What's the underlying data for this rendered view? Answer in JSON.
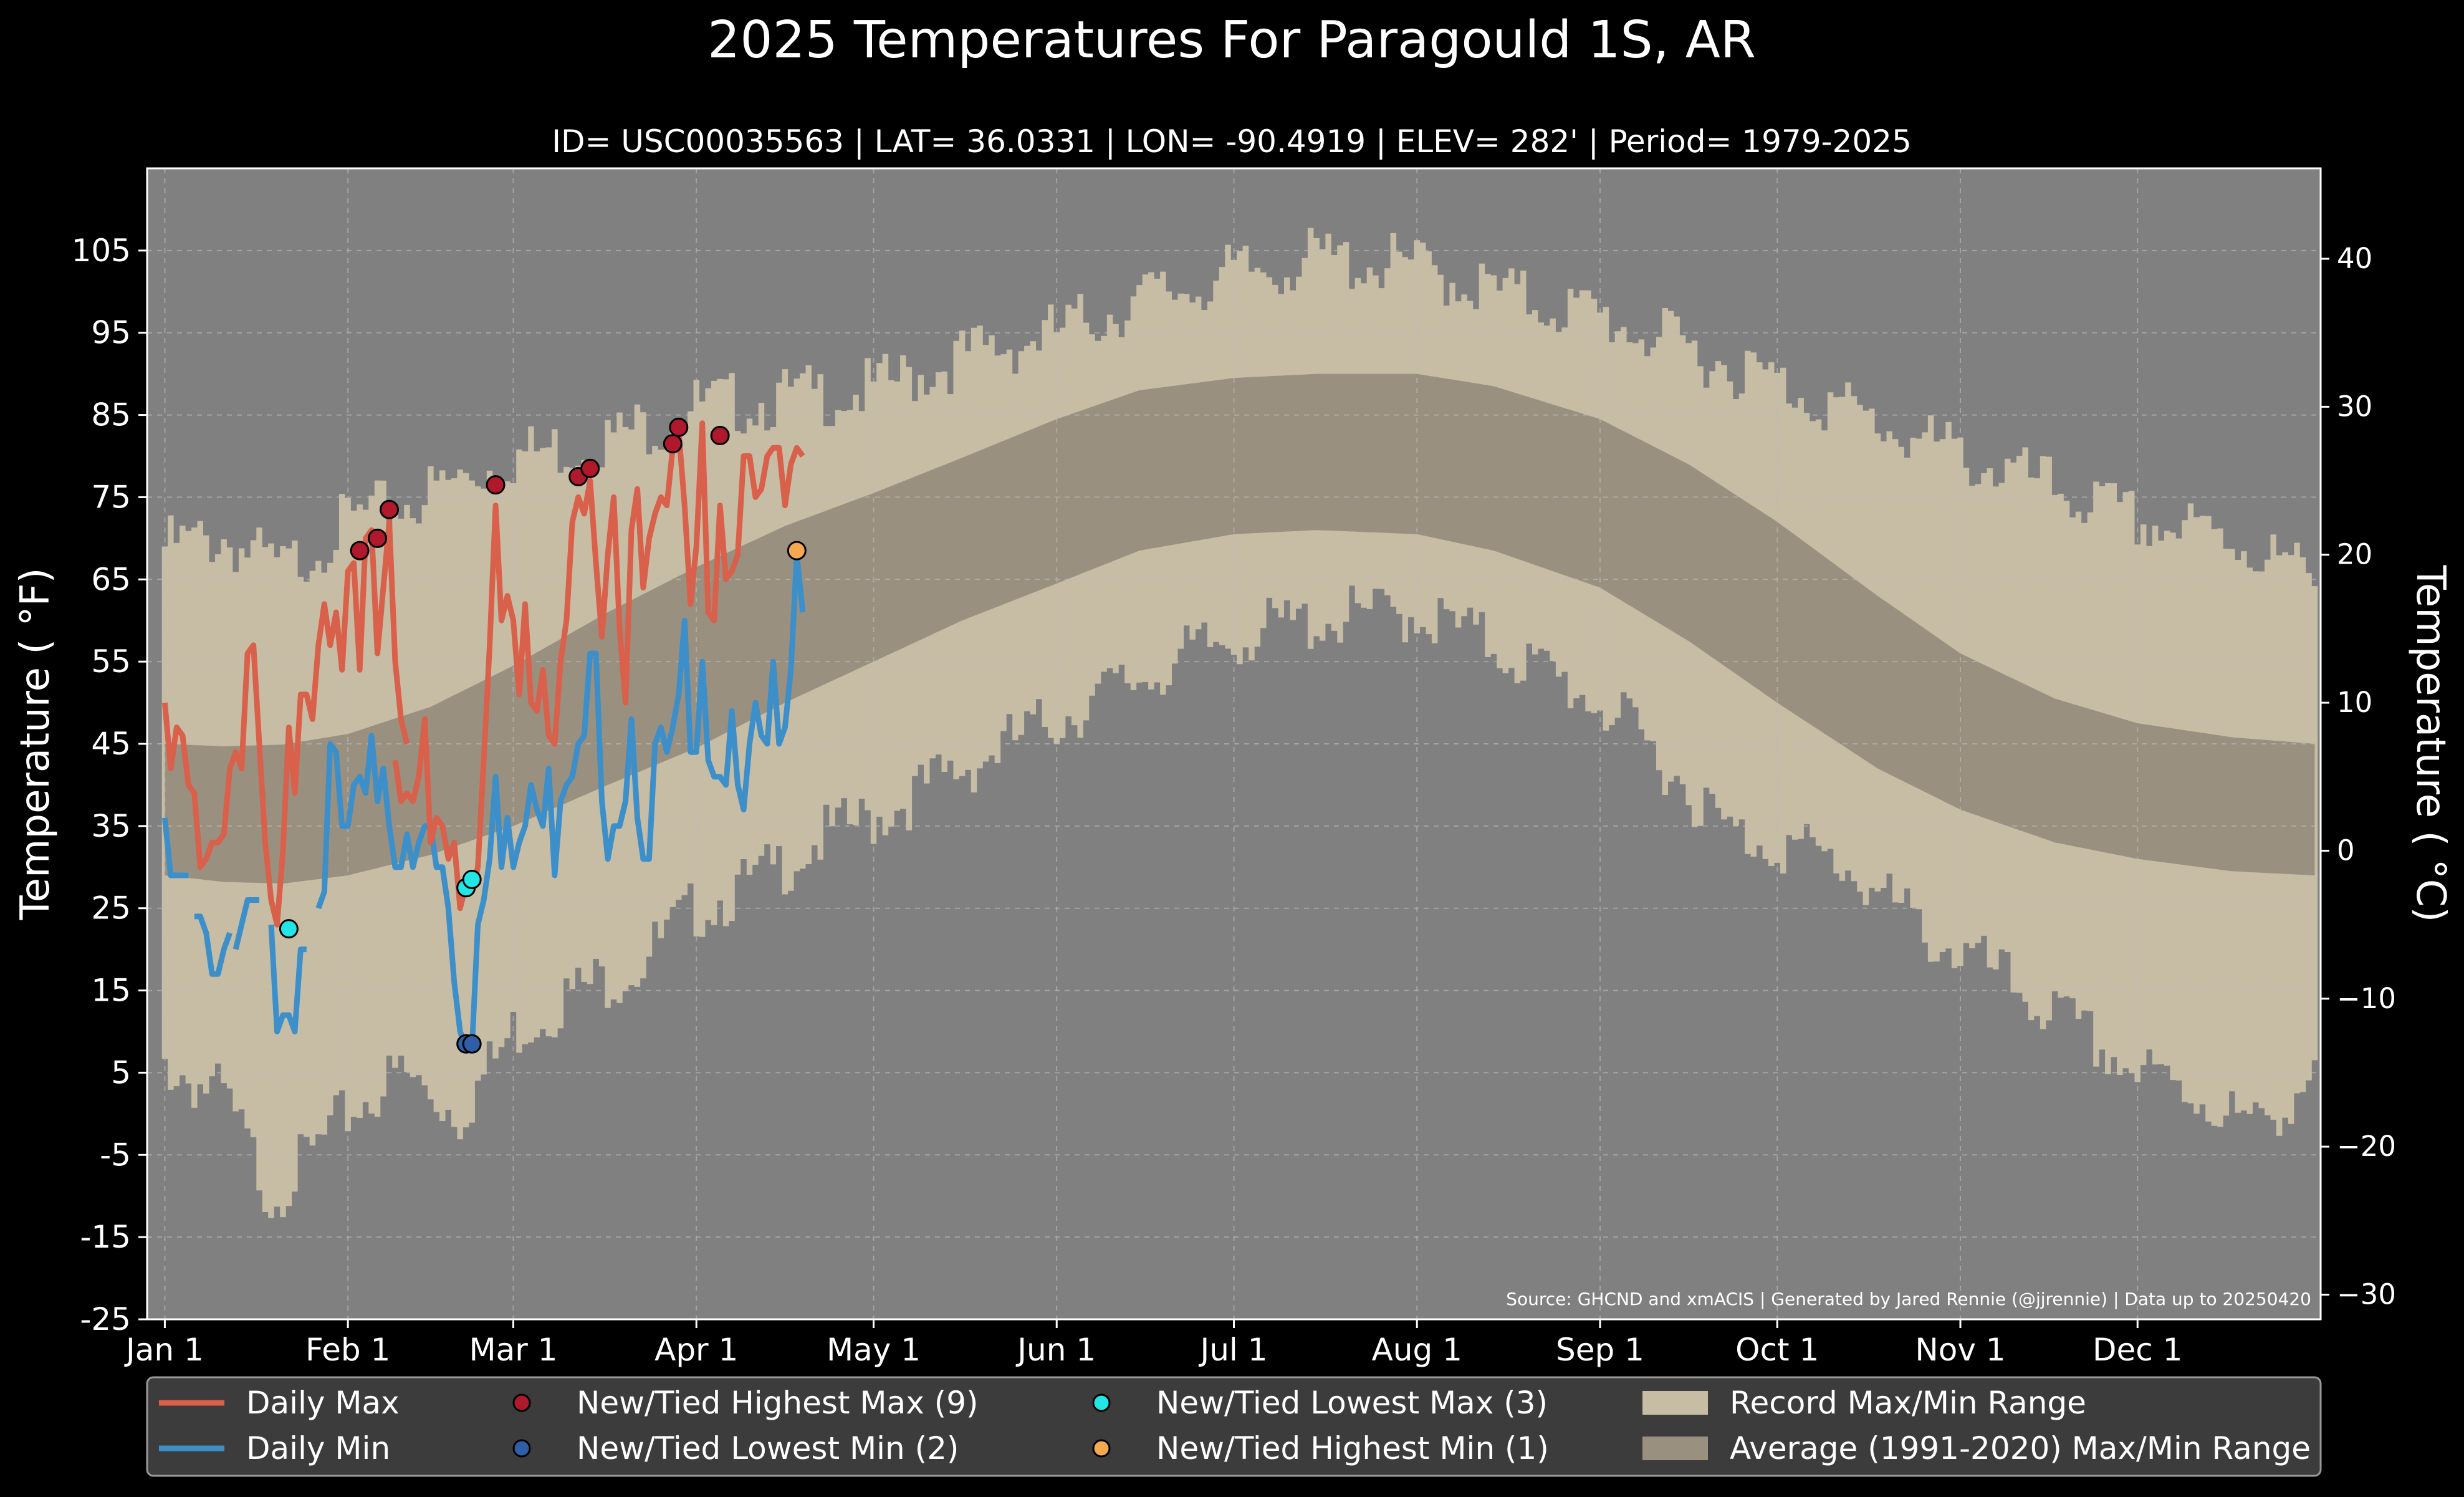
{
  "colors": {
    "background": "#000000",
    "plot_bg": "#808080",
    "record_band": "#c7bda5",
    "average_band": "#9a9080",
    "daily_max": "#d9604a",
    "daily_min": "#3d8fc9",
    "new_high_max": "#b0182c",
    "new_low_min": "#2e5ea8",
    "new_low_max": "#22e6e6",
    "new_high_min": "#f4a850",
    "legend_bg": "#3c3c3c",
    "grid": "#bbbbbb"
  },
  "chart_data": {
    "type": "line",
    "title": "2025 Temperatures For Paragould 1S, AR",
    "subtitle": "ID= USC00035563 | LAT= 36.0331 | LON= -90.4919 | ELEV= 282' | Period= 1979-2025",
    "ylabel": "Temperature ( °F)",
    "ylabel_right": "Temperature ( °C)",
    "source": "Source: GHCND and xmACIS | Generated by Jared Rennie (@jjrennie) | Data up to 20250420",
    "ylim": [
      -25,
      115
    ],
    "xlim": [
      -3,
      365
    ],
    "grid": true,
    "legend_placement": "bottom",
    "x_ticks": [
      {
        "label": "Jan 1",
        "day": 0
      },
      {
        "label": "Feb 1",
        "day": 31
      },
      {
        "label": "Mar 1",
        "day": 59
      },
      {
        "label": "Apr 1",
        "day": 90
      },
      {
        "label": "May 1",
        "day": 120
      },
      {
        "label": "Jun 1",
        "day": 151
      },
      {
        "label": "Jul 1",
        "day": 181
      },
      {
        "label": "Aug 1",
        "day": 212
      },
      {
        "label": "Sep 1",
        "day": 243
      },
      {
        "label": "Oct 1",
        "day": 273
      },
      {
        "label": "Nov 1",
        "day": 304
      },
      {
        "label": "Dec 1",
        "day": 334
      }
    ],
    "y_ticks": [
      "105",
      "95",
      "85",
      "75",
      "65",
      "55",
      "45",
      "35",
      "25",
      "15",
      "5",
      "-5",
      "-15",
      "-25"
    ],
    "y_tick_values": [
      105,
      95,
      85,
      75,
      65,
      55,
      45,
      35,
      25,
      15,
      5,
      -5,
      -15,
      -25
    ],
    "y_ticks_right": [
      "40",
      "30",
      "20",
      "10",
      "0",
      "−10",
      "−20",
      "−30"
    ],
    "y_tick_right_values_c": [
      40,
      30,
      20,
      10,
      0,
      -10,
      -20,
      -30
    ],
    "record_max": [
      [
        0,
        69
      ],
      [
        10,
        70
      ],
      [
        20,
        66
      ],
      [
        31,
        72
      ],
      [
        40,
        74
      ],
      [
        59,
        80
      ],
      [
        75,
        82
      ],
      [
        90,
        86
      ],
      [
        105,
        87
      ],
      [
        120,
        88
      ],
      [
        135,
        92
      ],
      [
        151,
        95
      ],
      [
        165,
        99
      ],
      [
        181,
        102
      ],
      [
        195,
        104
      ],
      [
        212,
        103
      ],
      [
        225,
        100
      ],
      [
        243,
        97
      ],
      [
        258,
        93
      ],
      [
        273,
        89
      ],
      [
        290,
        84
      ],
      [
        304,
        80
      ],
      [
        320,
        76
      ],
      [
        334,
        72
      ],
      [
        350,
        70
      ],
      [
        364,
        65
      ]
    ],
    "record_min": [
      [
        0,
        6
      ],
      [
        10,
        2
      ],
      [
        18,
        -10
      ],
      [
        25,
        -5
      ],
      [
        31,
        0
      ],
      [
        40,
        5
      ],
      [
        50,
        0
      ],
      [
        59,
        10
      ],
      [
        70,
        15
      ],
      [
        80,
        18
      ],
      [
        90,
        25
      ],
      [
        100,
        28
      ],
      [
        110,
        33
      ],
      [
        120,
        36
      ],
      [
        135,
        42
      ],
      [
        151,
        48
      ],
      [
        165,
        53
      ],
      [
        181,
        58
      ],
      [
        195,
        60
      ],
      [
        212,
        61
      ],
      [
        225,
        57
      ],
      [
        243,
        50
      ],
      [
        255,
        42
      ],
      [
        265,
        34
      ],
      [
        273,
        33
      ],
      [
        285,
        30
      ],
      [
        298,
        22
      ],
      [
        310,
        17
      ],
      [
        320,
        12
      ],
      [
        334,
        5
      ],
      [
        345,
        2
      ],
      [
        354,
        -2
      ],
      [
        364,
        5
      ]
    ],
    "avg_max": [
      [
        0,
        45
      ],
      [
        10,
        44.7
      ],
      [
        20,
        44.9
      ],
      [
        31,
        46.2
      ],
      [
        45,
        49.5
      ],
      [
        59,
        54.5
      ],
      [
        75,
        61
      ],
      [
        90,
        66.5
      ],
      [
        105,
        71.5
      ],
      [
        120,
        75.5
      ],
      [
        135,
        79.8
      ],
      [
        151,
        84.5
      ],
      [
        165,
        88
      ],
      [
        181,
        89.5
      ],
      [
        195,
        90
      ],
      [
        212,
        90
      ],
      [
        225,
        88.5
      ],
      [
        243,
        84.5
      ],
      [
        258,
        79
      ],
      [
        273,
        72
      ],
      [
        290,
        63
      ],
      [
        304,
        56
      ],
      [
        320,
        50.5
      ],
      [
        334,
        47.5
      ],
      [
        350,
        45.8
      ],
      [
        364,
        45
      ]
    ],
    "avg_min": [
      [
        0,
        29
      ],
      [
        10,
        28.2
      ],
      [
        20,
        28
      ],
      [
        31,
        29
      ],
      [
        45,
        31.5
      ],
      [
        59,
        35
      ],
      [
        75,
        40
      ],
      [
        90,
        44.5
      ],
      [
        105,
        50
      ],
      [
        120,
        55
      ],
      [
        135,
        60
      ],
      [
        151,
        64.5
      ],
      [
        165,
        68.5
      ],
      [
        181,
        70.5
      ],
      [
        195,
        71
      ],
      [
        212,
        70.5
      ],
      [
        225,
        68.5
      ],
      [
        243,
        64
      ],
      [
        258,
        57.5
      ],
      [
        273,
        50
      ],
      [
        290,
        42
      ],
      [
        304,
        37
      ],
      [
        320,
        33
      ],
      [
        334,
        31
      ],
      [
        350,
        29.5
      ],
      [
        364,
        29
      ]
    ],
    "daily_max": [
      [
        0,
        50
      ],
      [
        1,
        42
      ],
      [
        2,
        47
      ],
      [
        3,
        46
      ],
      [
        4,
        40
      ],
      [
        5,
        39
      ],
      [
        6,
        30
      ],
      [
        7,
        31
      ],
      [
        8,
        33
      ],
      [
        9,
        33
      ],
      [
        10,
        34
      ],
      [
        11,
        42
      ],
      [
        12,
        44
      ],
      [
        13,
        42
      ],
      [
        14,
        56
      ],
      [
        15,
        57
      ],
      [
        16,
        45
      ],
      [
        17,
        33
      ],
      [
        18,
        26
      ],
      [
        19,
        23
      ],
      [
        20,
        32
      ],
      [
        21,
        47
      ],
      [
        22,
        39
      ],
      [
        23,
        51
      ],
      [
        24,
        51
      ],
      [
        25,
        48
      ],
      [
        26,
        57
      ],
      [
        27,
        62
      ],
      [
        28,
        57
      ],
      [
        29,
        61
      ],
      [
        30,
        54
      ],
      [
        31,
        66
      ],
      [
        32,
        67
      ],
      [
        33,
        54
      ],
      [
        34,
        70
      ],
      [
        35,
        71
      ],
      [
        36,
        56
      ],
      [
        38,
        72
      ],
      [
        39,
        55
      ],
      [
        40,
        48
      ],
      [
        41,
        45
      ],
      [
        39,
        null
      ],
      [
        39,
        43
      ],
      [
        40,
        38
      ],
      [
        41,
        39
      ],
      [
        42,
        38
      ],
      [
        43,
        41
      ],
      [
        44,
        48
      ],
      [
        45,
        33
      ],
      [
        46,
        36
      ],
      [
        47,
        35
      ],
      [
        48,
        31
      ],
      [
        49,
        33
      ],
      [
        50,
        25
      ],
      [
        51,
        28
      ],
      [
        52,
        27
      ],
      [
        53,
        30
      ],
      [
        54,
        43
      ],
      [
        55,
        57
      ],
      [
        56,
        74
      ],
      [
        57,
        60
      ],
      [
        58,
        63
      ],
      [
        59,
        60
      ],
      [
        60,
        51
      ],
      [
        61,
        62
      ],
      [
        62,
        50
      ],
      [
        63,
        49
      ],
      [
        64,
        54
      ],
      [
        65,
        46
      ],
      [
        66,
        45
      ],
      [
        67,
        55
      ],
      [
        68,
        60
      ],
      [
        69,
        72
      ],
      [
        70,
        75
      ],
      [
        71,
        73
      ],
      [
        72,
        77
      ],
      [
        73,
        67
      ],
      [
        74,
        58
      ],
      [
        75,
        68
      ],
      [
        76,
        75
      ],
      [
        77,
        59
      ],
      [
        78,
        50
      ],
      [
        79,
        71
      ],
      [
        80,
        76
      ],
      [
        81,
        64
      ],
      [
        82,
        70
      ],
      [
        83,
        73
      ],
      [
        84,
        75
      ],
      [
        85,
        74
      ],
      [
        86,
        81
      ],
      [
        87,
        83
      ],
      [
        88,
        74
      ],
      [
        89,
        62
      ],
      [
        90,
        69
      ],
      [
        91,
        84
      ],
      [
        92,
        61
      ],
      [
        93,
        60
      ],
      [
        94,
        74
      ],
      [
        95,
        65
      ],
      [
        96,
        66
      ],
      [
        97,
        68
      ],
      [
        98,
        80
      ],
      [
        99,
        80
      ],
      [
        100,
        75
      ],
      [
        101,
        76
      ],
      [
        102,
        80
      ],
      [
        103,
        81
      ],
      [
        104,
        81
      ],
      [
        105,
        74
      ],
      [
        106,
        79
      ],
      [
        107,
        81
      ],
      [
        108,
        80
      ]
    ],
    "daily_min": [
      [
        0,
        36
      ],
      [
        1,
        29
      ],
      [
        2,
        29
      ],
      [
        3,
        29
      ],
      [
        4,
        29
      ],
      [
        5,
        null
      ],
      [
        5,
        24
      ],
      [
        6,
        24
      ],
      [
        7,
        22
      ],
      [
        8,
        17
      ],
      [
        9,
        17
      ],
      [
        10,
        20
      ],
      [
        11,
        22
      ],
      [
        12,
        null
      ],
      [
        12,
        20
      ],
      [
        13,
        23
      ],
      [
        14,
        26
      ],
      [
        15,
        26
      ],
      [
        16,
        26
      ],
      [
        17,
        null
      ],
      [
        18,
        23
      ],
      [
        19,
        10
      ],
      [
        20,
        12
      ],
      [
        21,
        12
      ],
      [
        22,
        10
      ],
      [
        23,
        20
      ],
      [
        24,
        20
      ],
      [
        25,
        null
      ],
      [
        26,
        25
      ],
      [
        27,
        27
      ],
      [
        28,
        45
      ],
      [
        29,
        44
      ],
      [
        30,
        35
      ],
      [
        31,
        35
      ],
      [
        32,
        40
      ],
      [
        33,
        41
      ],
      [
        34,
        39
      ],
      [
        35,
        46
      ],
      [
        36,
        38
      ],
      [
        37,
        42
      ],
      [
        38,
        35
      ],
      [
        39,
        30
      ],
      [
        40,
        30
      ],
      [
        41,
        34
      ],
      [
        42,
        30
      ],
      [
        43,
        33
      ],
      [
        44,
        35
      ],
      [
        45,
        35
      ],
      [
        46,
        30
      ],
      [
        47,
        30
      ],
      [
        48,
        25
      ],
      [
        49,
        16
      ],
      [
        50,
        10
      ],
      [
        51,
        8
      ],
      [
        52,
        8
      ],
      [
        53,
        23
      ],
      [
        54,
        26
      ],
      [
        55,
        31
      ],
      [
        56,
        41
      ],
      [
        57,
        30
      ],
      [
        58,
        36
      ],
      [
        59,
        30
      ],
      [
        60,
        33
      ],
      [
        61,
        35
      ],
      [
        62,
        40
      ],
      [
        63,
        37
      ],
      [
        64,
        35
      ],
      [
        65,
        42
      ],
      [
        66,
        29
      ],
      [
        67,
        38
      ],
      [
        68,
        40
      ],
      [
        69,
        41
      ],
      [
        70,
        45
      ],
      [
        71,
        46
      ],
      [
        72,
        56
      ],
      [
        73,
        56
      ],
      [
        74,
        38
      ],
      [
        75,
        31
      ],
      [
        76,
        35
      ],
      [
        77,
        35
      ],
      [
        78,
        38
      ],
      [
        79,
        48
      ],
      [
        80,
        36
      ],
      [
        81,
        31
      ],
      [
        82,
        31
      ],
      [
        83,
        45
      ],
      [
        84,
        47
      ],
      [
        85,
        44
      ],
      [
        86,
        47
      ],
      [
        87,
        51
      ],
      [
        88,
        60
      ],
      [
        89,
        44
      ],
      [
        90,
        44
      ],
      [
        91,
        55
      ],
      [
        92,
        43
      ],
      [
        93,
        41
      ],
      [
        94,
        41
      ],
      [
        95,
        40
      ],
      [
        96,
        49
      ],
      [
        97,
        40
      ],
      [
        98,
        37
      ],
      [
        99,
        45
      ],
      [
        100,
        50
      ],
      [
        101,
        46
      ],
      [
        102,
        45
      ],
      [
        103,
        55
      ],
      [
        104,
        45
      ],
      [
        105,
        47
      ],
      [
        106,
        54
      ],
      [
        107,
        68
      ],
      [
        108,
        61
      ]
    ],
    "markers": [
      {
        "series": "new_high_max",
        "x": 33,
        "y": 68.5
      },
      {
        "series": "new_high_max",
        "x": 36,
        "y": 70
      },
      {
        "series": "new_high_max",
        "x": 38,
        "y": 73.5
      },
      {
        "series": "new_high_max",
        "x": 56,
        "y": 76.5
      },
      {
        "series": "new_high_max",
        "x": 70,
        "y": 77.5
      },
      {
        "series": "new_high_max",
        "x": 72,
        "y": 78.5
      },
      {
        "series": "new_high_max",
        "x": 86,
        "y": 81.5
      },
      {
        "series": "new_high_max",
        "x": 87,
        "y": 83.5
      },
      {
        "series": "new_high_max",
        "x": 94,
        "y": 82.5
      },
      {
        "series": "new_low_min",
        "x": 51,
        "y": 8.5
      },
      {
        "series": "new_low_min",
        "x": 52,
        "y": 8.5
      },
      {
        "series": "new_low_max",
        "x": 21,
        "y": 22.5
      },
      {
        "series": "new_low_max",
        "x": 51,
        "y": 27.5
      },
      {
        "series": "new_low_max",
        "x": 52,
        "y": 28.5
      },
      {
        "series": "new_high_min",
        "x": 107,
        "y": 68.5
      }
    ]
  },
  "legend": [
    {
      "label": "Daily Max",
      "kind": "line",
      "color": "#d9604a"
    },
    {
      "label": "Daily Min",
      "kind": "line",
      "color": "#3d8fc9"
    },
    {
      "label": "New/Tied Highest Max (9)",
      "kind": "dot",
      "color": "#b0182c"
    },
    {
      "label": "New/Tied Lowest Min (2)",
      "kind": "dot",
      "color": "#2e5ea8"
    },
    {
      "label": "New/Tied Lowest Max (3)",
      "kind": "dot",
      "color": "#22e6e6"
    },
    {
      "label": "New/Tied Highest Min (1)",
      "kind": "dot",
      "color": "#f4a850"
    },
    {
      "label": "Record Max/Min Range",
      "kind": "patch",
      "color": "#c7bda5"
    },
    {
      "label": "Average (1991-2020) Max/Min Range",
      "kind": "patch",
      "color": "#9a9080"
    }
  ]
}
